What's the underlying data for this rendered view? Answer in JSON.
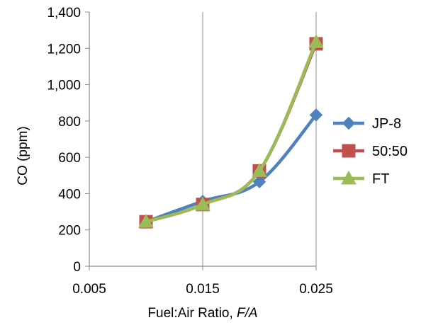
{
  "chart_data": {
    "type": "line",
    "xlabel": "Fuel:Air Ratio,",
    "xlabel_italic": "F/A",
    "ylabel": "CO (ppm)",
    "xlim": [
      0.005,
      0.025
    ],
    "ylim": [
      0,
      1400
    ],
    "xticks": [
      0.005,
      0.015,
      0.025
    ],
    "xtick_labels": [
      "0.005",
      "0.015",
      "0.025"
    ],
    "yticks": [
      0,
      200,
      400,
      600,
      800,
      1000,
      1200,
      1400
    ],
    "ytick_labels": [
      "0",
      "200",
      "400",
      "600",
      "800",
      "1,000",
      "1,200",
      "1,400"
    ],
    "grid": "vertical",
    "legend": "right",
    "series": [
      {
        "name": "JP-8",
        "color": "#4F81BD",
        "marker": "diamond",
        "x": [
          0.01,
          0.015,
          0.02,
          0.025
        ],
        "values": [
          245,
          358,
          465,
          833
        ]
      },
      {
        "name": "50:50",
        "color": "#C0504D",
        "marker": "square",
        "x": [
          0.01,
          0.015,
          0.02,
          0.025
        ],
        "values": [
          245,
          340,
          525,
          1225
        ]
      },
      {
        "name": "FT",
        "color": "#9BBB59",
        "marker": "triangle",
        "x": [
          0.01,
          0.015,
          0.02,
          0.025
        ],
        "values": [
          245,
          340,
          525,
          1235
        ]
      }
    ]
  }
}
